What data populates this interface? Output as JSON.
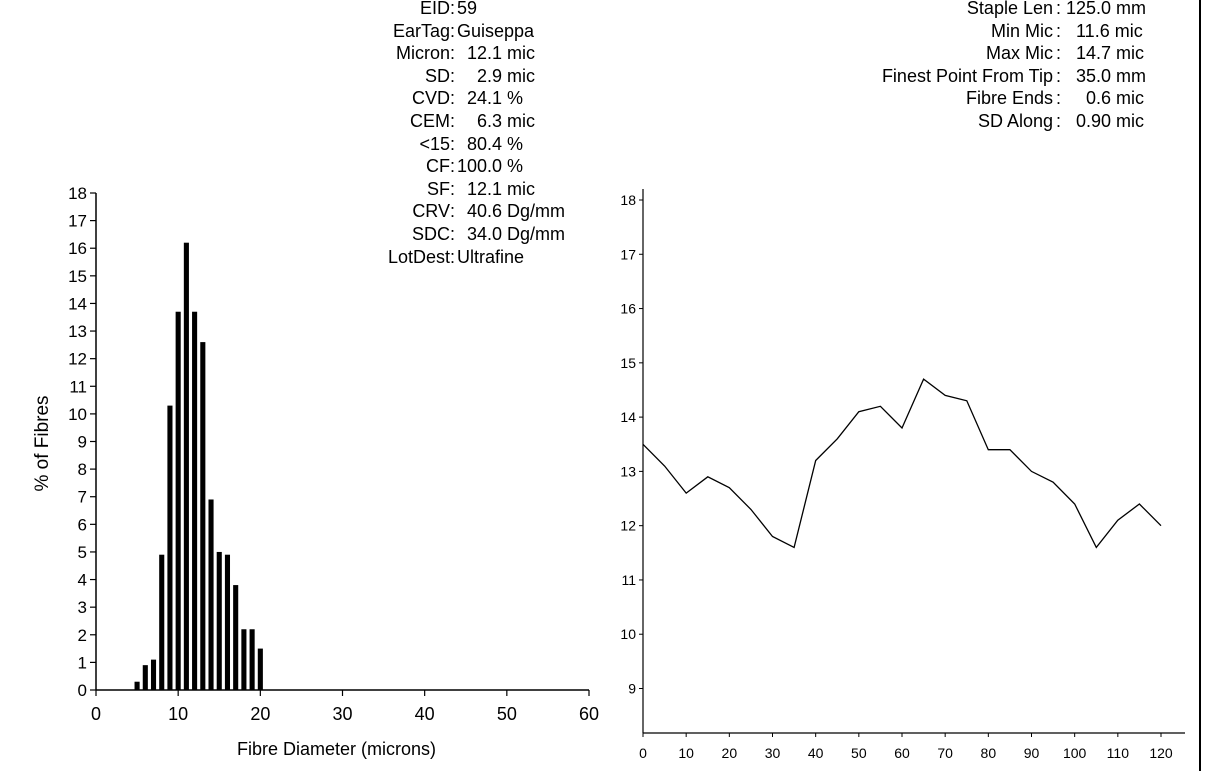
{
  "left_stats": [
    {
      "label": "EID",
      "value": "59"
    },
    {
      "label": "EarTag",
      "value": "Guiseppa"
    },
    {
      "label": "Micron",
      "value": "  12.1 mic"
    },
    {
      "label": "SD",
      "value": "    2.9 mic"
    },
    {
      "label": "CVD",
      "value": "  24.1 %"
    },
    {
      "label": "CEM",
      "value": "    6.3 mic"
    },
    {
      "label": "<15",
      "value": "  80.4 %"
    },
    {
      "label": "CF",
      "value": "100.0 %"
    },
    {
      "label": "SF",
      "value": "  12.1 mic"
    },
    {
      "label": "CRV",
      "value": "  40.6 Dg/mm"
    },
    {
      "label": "SDC",
      "value": "  34.0 Dg/mm"
    },
    {
      "label": "LotDest",
      "value": "Ultrafine"
    }
  ],
  "right_stats": [
    {
      "label": "Staple Len",
      "value": "125.0 mm"
    },
    {
      "label": "Min Mic",
      "value": "  11.6 mic"
    },
    {
      "label": "Max Mic",
      "value": "  14.7 mic"
    },
    {
      "label": "Finest Point From Tip",
      "value": "  35.0 mm"
    },
    {
      "label": "Fibre Ends",
      "value": "    0.6 mic"
    },
    {
      "label": "SD Along",
      "value": "  0.90 mic"
    }
  ],
  "chart_data": [
    {
      "type": "bar",
      "xlabel": "Fibre Diameter (microns)",
      "ylabel": "% of Fibres",
      "xlim": [
        0,
        60
      ],
      "ylim": [
        0,
        18
      ],
      "xticks": [
        0,
        10,
        20,
        30,
        40,
        50,
        60
      ],
      "yticks": [
        0,
        1,
        2,
        3,
        4,
        5,
        6,
        7,
        8,
        9,
        10,
        11,
        12,
        13,
        14,
        15,
        16,
        17,
        18
      ],
      "x": [
        5,
        6,
        7,
        8,
        9,
        10,
        11,
        12,
        13,
        14,
        15,
        16,
        17,
        18,
        19,
        20
      ],
      "values": [
        0.3,
        0.9,
        1.1,
        4.9,
        10.3,
        13.7,
        16.2,
        13.7,
        12.6,
        6.9,
        5.0,
        4.9,
        3.8,
        2.2,
        2.2,
        1.5
      ],
      "bar_color": "#000000"
    },
    {
      "type": "line",
      "xlim": [
        0,
        120
      ],
      "ylim": [
        8.2,
        18.1
      ],
      "xticks": [
        0,
        10,
        20,
        30,
        40,
        50,
        60,
        70,
        80,
        90,
        100,
        110,
        120
      ],
      "yticks": [
        9,
        10,
        11,
        12,
        13,
        14,
        15,
        16,
        17,
        18
      ],
      "x": [
        0,
        5,
        10,
        15,
        20,
        25,
        30,
        35,
        40,
        45,
        50,
        55,
        60,
        65,
        70,
        75,
        80,
        85,
        90,
        95,
        100,
        105,
        110,
        115,
        120
      ],
      "y": [
        13.5,
        13.1,
        12.6,
        12.9,
        12.7,
        12.3,
        11.8,
        11.6,
        13.2,
        13.6,
        14.1,
        14.2,
        13.8,
        14.7,
        14.4,
        14.3,
        13.4,
        13.4,
        13.0,
        12.8,
        12.4,
        11.6,
        12.1,
        12.4,
        12.0
      ],
      "line_color": "#000000"
    }
  ]
}
